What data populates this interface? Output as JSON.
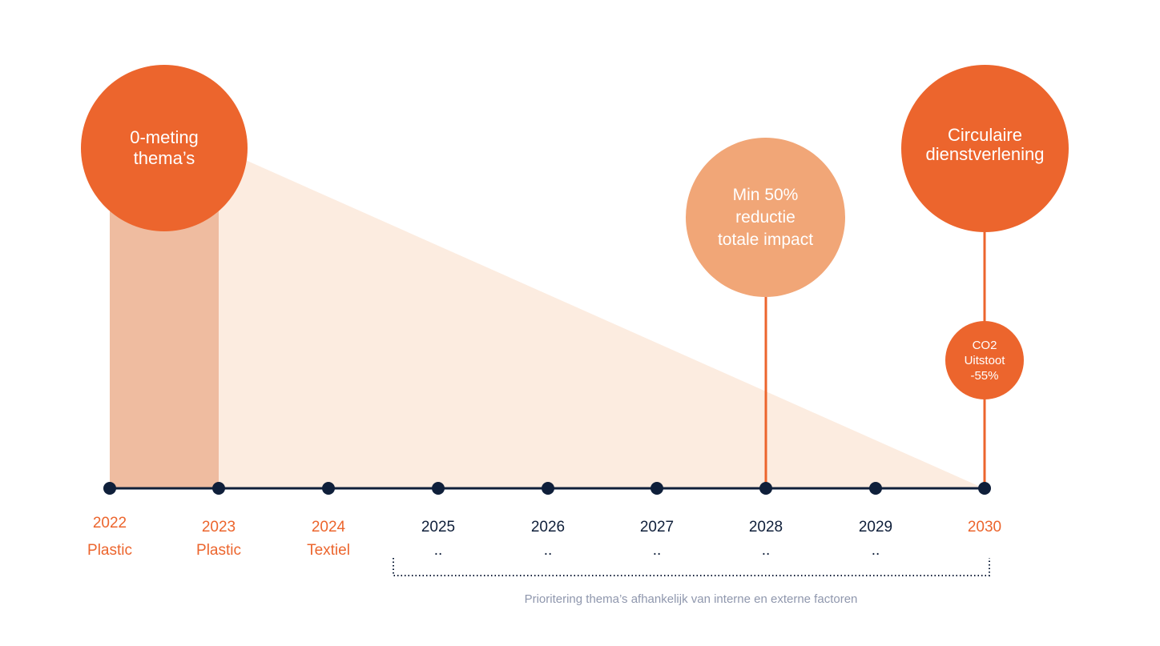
{
  "colors": {
    "accent": "#ec652d",
    "accent_light": "#f1a677",
    "band": "#efbca0",
    "wedge": "#fcece0",
    "axis": "#0f1f3a",
    "muted": "#8f97ad"
  },
  "milestones": {
    "zero_meting": "0-meting\nthema’s",
    "reduction": "Min 50%\nreductie\ntotale impact",
    "circular": "Circulaire\ndienstverlening",
    "co2": "CO2\nUitstoot\n-55%"
  },
  "timeline": [
    {
      "year": "2022",
      "label": "Plastic",
      "highlight": true
    },
    {
      "year": "2023",
      "label": "Plastic",
      "highlight": true
    },
    {
      "year": "2024",
      "label": "Textiel",
      "highlight": true
    },
    {
      "year": "2025",
      "label": "..",
      "highlight": false
    },
    {
      "year": "2026",
      "label": "..",
      "highlight": false
    },
    {
      "year": "2027",
      "label": "..",
      "highlight": false
    },
    {
      "year": "2028",
      "label": "..",
      "highlight": false
    },
    {
      "year": "2029",
      "label": "..",
      "highlight": false
    },
    {
      "year": "2030",
      "label": "",
      "highlight": true
    }
  ],
  "footnote": "Prioritering thema’s afhankelijk van interne en externe factoren"
}
